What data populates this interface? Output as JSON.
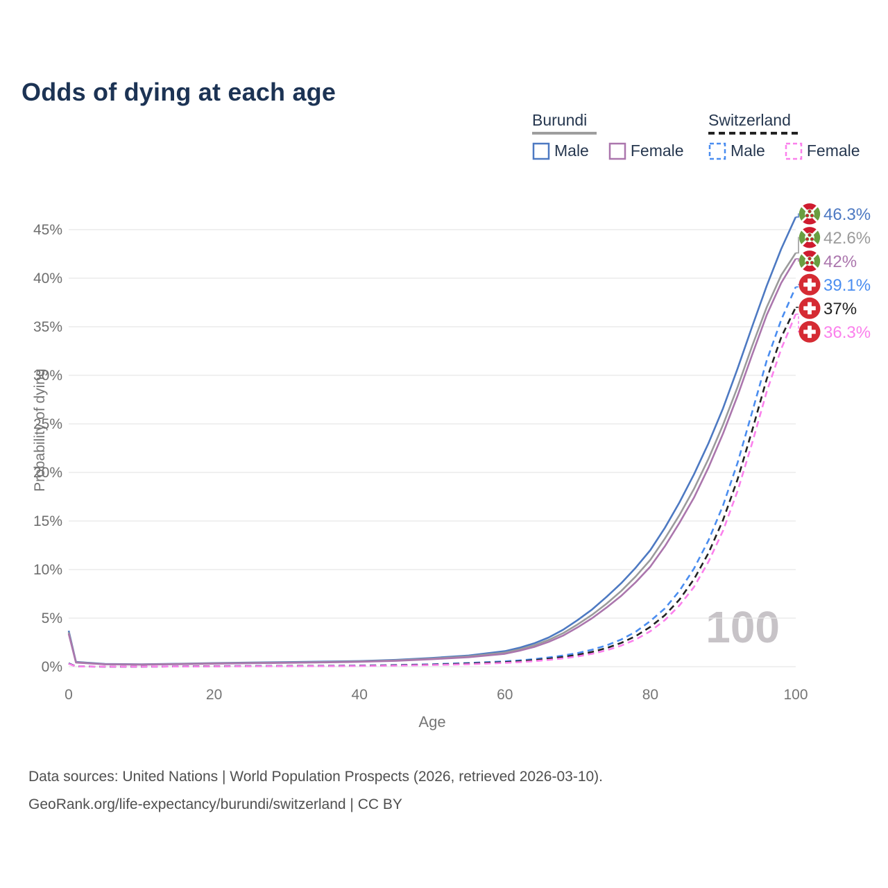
{
  "title": "Odds of dying at each age",
  "legend": {
    "groups": [
      {
        "name": "Burundi",
        "line_style": "solid",
        "underline_color": "#9e9e9e",
        "items": [
          {
            "label": "Male",
            "color": "#4d79c2",
            "dashed": false
          },
          {
            "label": "Female",
            "color": "#ab76ad",
            "dashed": false
          }
        ]
      },
      {
        "name": "Switzerland",
        "line_style": "dashed",
        "underline_color": "#232323",
        "items": [
          {
            "label": "Male",
            "color": "#4a8df0",
            "dashed": true
          },
          {
            "label": "Female",
            "color": "#fb80ec",
            "dashed": true
          }
        ]
      }
    ]
  },
  "chart_data": {
    "type": "line",
    "title": "Odds of dying at each age",
    "xlabel": "Age",
    "ylabel": "Probability of dying",
    "xlim": [
      0,
      100
    ],
    "ylim": [
      0,
      47
    ],
    "x_ticks": [
      0,
      20,
      40,
      60,
      80,
      100
    ],
    "y_ticks": [
      0,
      5,
      10,
      15,
      20,
      25,
      30,
      35,
      40,
      45
    ],
    "y_tick_labels": [
      "0%",
      "5%",
      "10%",
      "15%",
      "20%",
      "25%",
      "30%",
      "35%",
      "40%",
      "45%"
    ],
    "grid": "horizontal",
    "legend_position": "top-right",
    "watermark": "100",
    "ages": [
      0,
      1,
      5,
      10,
      15,
      20,
      25,
      30,
      35,
      40,
      45,
      50,
      55,
      60,
      62,
      64,
      66,
      68,
      70,
      72,
      74,
      76,
      78,
      80,
      82,
      84,
      86,
      88,
      90,
      92,
      94,
      96,
      98,
      100
    ],
    "series": [
      {
        "name": "Burundi Male",
        "country": "Burundi",
        "sex": "Male",
        "color": "#4d79c2",
        "line_style": "solid",
        "flag": "burundi",
        "end_label": "46.3%",
        "values": [
          3.7,
          0.5,
          0.28,
          0.25,
          0.3,
          0.37,
          0.42,
          0.47,
          0.52,
          0.58,
          0.7,
          0.9,
          1.15,
          1.6,
          1.95,
          2.4,
          3.0,
          3.8,
          4.8,
          5.9,
          7.2,
          8.6,
          10.2,
          12.0,
          14.3,
          16.9,
          19.8,
          23.0,
          26.6,
          30.7,
          35.0,
          39.2,
          43.0,
          46.3
        ]
      },
      {
        "name": "Burundi Both sexes",
        "country": "Burundi",
        "sex": "Both",
        "color": "#9b9b9b",
        "line_style": "solid",
        "flag": "burundi",
        "end_label": "42.6%",
        "values": [
          3.55,
          0.46,
          0.26,
          0.23,
          0.28,
          0.34,
          0.39,
          0.43,
          0.48,
          0.54,
          0.65,
          0.83,
          1.06,
          1.45,
          1.78,
          2.2,
          2.75,
          3.45,
          4.35,
          5.35,
          6.5,
          7.8,
          9.3,
          11.0,
          13.2,
          15.6,
          18.3,
          21.4,
          24.9,
          28.8,
          33.0,
          37.0,
          40.3,
          42.6
        ]
      },
      {
        "name": "Burundi Female",
        "country": "Burundi",
        "sex": "Female",
        "color": "#ab76ad",
        "line_style": "solid",
        "flag": "burundi",
        "end_label": "42%",
        "values": [
          3.4,
          0.42,
          0.24,
          0.21,
          0.26,
          0.31,
          0.36,
          0.4,
          0.44,
          0.5,
          0.6,
          0.77,
          0.98,
          1.33,
          1.64,
          2.03,
          2.55,
          3.2,
          4.05,
          5.0,
          6.1,
          7.3,
          8.7,
          10.3,
          12.4,
          14.8,
          17.4,
          20.5,
          24.0,
          27.9,
          32.1,
          36.2,
          39.5,
          42.0
        ]
      },
      {
        "name": "Switzerland Male",
        "country": "Switzerland",
        "sex": "Male",
        "color": "#4a8df0",
        "line_style": "dashed",
        "flag": "switzerland",
        "end_label": "39.1%",
        "values": [
          0.35,
          0.03,
          0.01,
          0.01,
          0.03,
          0.06,
          0.07,
          0.08,
          0.09,
          0.12,
          0.17,
          0.25,
          0.38,
          0.55,
          0.65,
          0.78,
          0.95,
          1.15,
          1.4,
          1.75,
          2.2,
          2.8,
          3.6,
          4.7,
          6.0,
          7.8,
          10.1,
          13.0,
          16.6,
          21.0,
          26.2,
          31.5,
          35.7,
          39.1
        ]
      },
      {
        "name": "Switzerland Both sexes",
        "country": "Switzerland",
        "sex": "Both",
        "color": "#232323",
        "line_style": "dashed",
        "flag": "switzerland",
        "end_label": "37%",
        "values": [
          0.33,
          0.03,
          0.01,
          0.01,
          0.02,
          0.05,
          0.06,
          0.07,
          0.08,
          0.1,
          0.14,
          0.21,
          0.32,
          0.47,
          0.56,
          0.67,
          0.82,
          1.0,
          1.22,
          1.52,
          1.92,
          2.45,
          3.15,
          4.1,
          5.3,
          6.9,
          9.0,
          11.7,
          15.1,
          19.3,
          24.3,
          29.6,
          33.9,
          37.0
        ]
      },
      {
        "name": "Switzerland Female",
        "country": "Switzerland",
        "sex": "Female",
        "color": "#fb80ec",
        "line_style": "dashed",
        "flag": "switzerland",
        "end_label": "36.3%",
        "values": [
          0.3,
          0.02,
          0.01,
          0.01,
          0.02,
          0.03,
          0.04,
          0.05,
          0.06,
          0.08,
          0.11,
          0.17,
          0.26,
          0.39,
          0.47,
          0.57,
          0.7,
          0.86,
          1.06,
          1.33,
          1.69,
          2.17,
          2.8,
          3.65,
          4.8,
          6.3,
          8.2,
          10.8,
          14.0,
          18.1,
          23.0,
          28.3,
          32.7,
          36.3
        ]
      }
    ]
  },
  "source": {
    "line1": "Data sources: United Nations | World Population Prospects (2026, retrieved 2026-03-10).",
    "line2": "GeoRank.org/life-expectancy/burundi/switzerland | CC BY"
  }
}
